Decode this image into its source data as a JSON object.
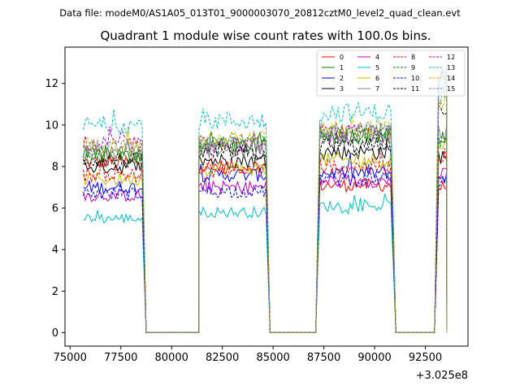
{
  "chart_data": {
    "type": "line",
    "suptitle": "Data file: modeM0/AS1A05_013T01_9000003070_20812cztM0_level2_quad_clean.evt",
    "title": "Quadrant 1 module wise count rates with 100.0s bins.",
    "xlabel": "",
    "ylabel": "",
    "x_offset_label": "+3.025e8",
    "xlim": [
      74750,
      94600
    ],
    "ylim": [
      -0.65,
      13.75
    ],
    "xticks": [
      75000,
      77500,
      80000,
      82500,
      85000,
      87500,
      90000,
      92500
    ],
    "xtick_labels": [
      "75000",
      "77500",
      "80000",
      "82500",
      "85000",
      "87500",
      "90000",
      "92500"
    ],
    "yticks": [
      0,
      2,
      4,
      6,
      8,
      10,
      12
    ],
    "ytick_labels": [
      "0",
      "2",
      "4",
      "6",
      "8",
      "10",
      "12"
    ],
    "legend_position": "upper right",
    "bin_width_s": 100,
    "segments": [
      {
        "start": 75650,
        "end": 78550,
        "fall_end": 78750
      },
      {
        "start": 81350,
        "rise_start": 81350,
        "end": 84650,
        "fall_end": 84850
      },
      {
        "start": 87300,
        "rise_start": 87100,
        "end": 90850,
        "fall_end": 91050
      },
      {
        "start": 93150,
        "rise_start": 92950,
        "end": 93550,
        "fall_end": 93560
      }
    ],
    "gaps_value": 0,
    "series": [
      {
        "name": "0",
        "color": "#ff0000",
        "dash": "solid",
        "levels": [
          8.2,
          8.0,
          7.1,
          7.0
        ]
      },
      {
        "name": "1",
        "color": "#008000",
        "dash": "solid",
        "levels": [
          8.5,
          9.0,
          9.5,
          9.2
        ]
      },
      {
        "name": "2",
        "color": "#0000ff",
        "dash": "solid",
        "levels": [
          7.0,
          7.6,
          7.7,
          7.5
        ]
      },
      {
        "name": "3",
        "color": "#000000",
        "dash": "solid",
        "levels": [
          8.0,
          8.3,
          8.7,
          8.5
        ]
      },
      {
        "name": "4",
        "color": "#bf00bf",
        "dash": "solid",
        "levels": [
          6.6,
          7.0,
          7.3,
          7.6
        ]
      },
      {
        "name": "5",
        "color": "#00bfbf",
        "dash": "solid",
        "levels": [
          5.5,
          5.8,
          6.1,
          12.0
        ]
      },
      {
        "name": "6",
        "color": "#bfbf00",
        "dash": "solid",
        "levels": [
          7.4,
          7.9,
          8.3,
          9.0
        ]
      },
      {
        "name": "7",
        "color": "#808080",
        "dash": "solid",
        "levels": [
          8.7,
          8.8,
          9.4,
          9.7
        ]
      },
      {
        "name": "8",
        "color": "#ff0000",
        "dash": "dashed",
        "levels": [
          7.6,
          7.8,
          8.0,
          8.5
        ]
      },
      {
        "name": "9",
        "color": "#008000",
        "dash": "dashed",
        "levels": [
          8.6,
          9.1,
          9.6,
          9.5
        ]
      },
      {
        "name": "10",
        "color": "#0000ff",
        "dash": "dashed",
        "levels": [
          6.7,
          6.8,
          7.4,
          7.2
        ]
      },
      {
        "name": "11",
        "color": "#000000",
        "dash": "dashed",
        "levels": [
          8.3,
          8.6,
          9.0,
          10.5
        ]
      },
      {
        "name": "12",
        "color": "#bf00bf",
        "dash": "dashed",
        "levels": [
          9.1,
          9.0,
          9.6,
          12.2
        ]
      },
      {
        "name": "13",
        "color": "#00bfbf",
        "dash": "dashed",
        "levels": [
          10.0,
          10.2,
          10.6,
          12.3
        ]
      },
      {
        "name": "14",
        "color": "#bfbf00",
        "dash": "dashed",
        "levels": [
          9.0,
          9.3,
          9.8,
          11.0
        ]
      },
      {
        "name": "15",
        "color": "#808080",
        "dash": "dashed",
        "levels": [
          8.9,
          9.2,
          9.7,
          11.5
        ]
      }
    ]
  }
}
